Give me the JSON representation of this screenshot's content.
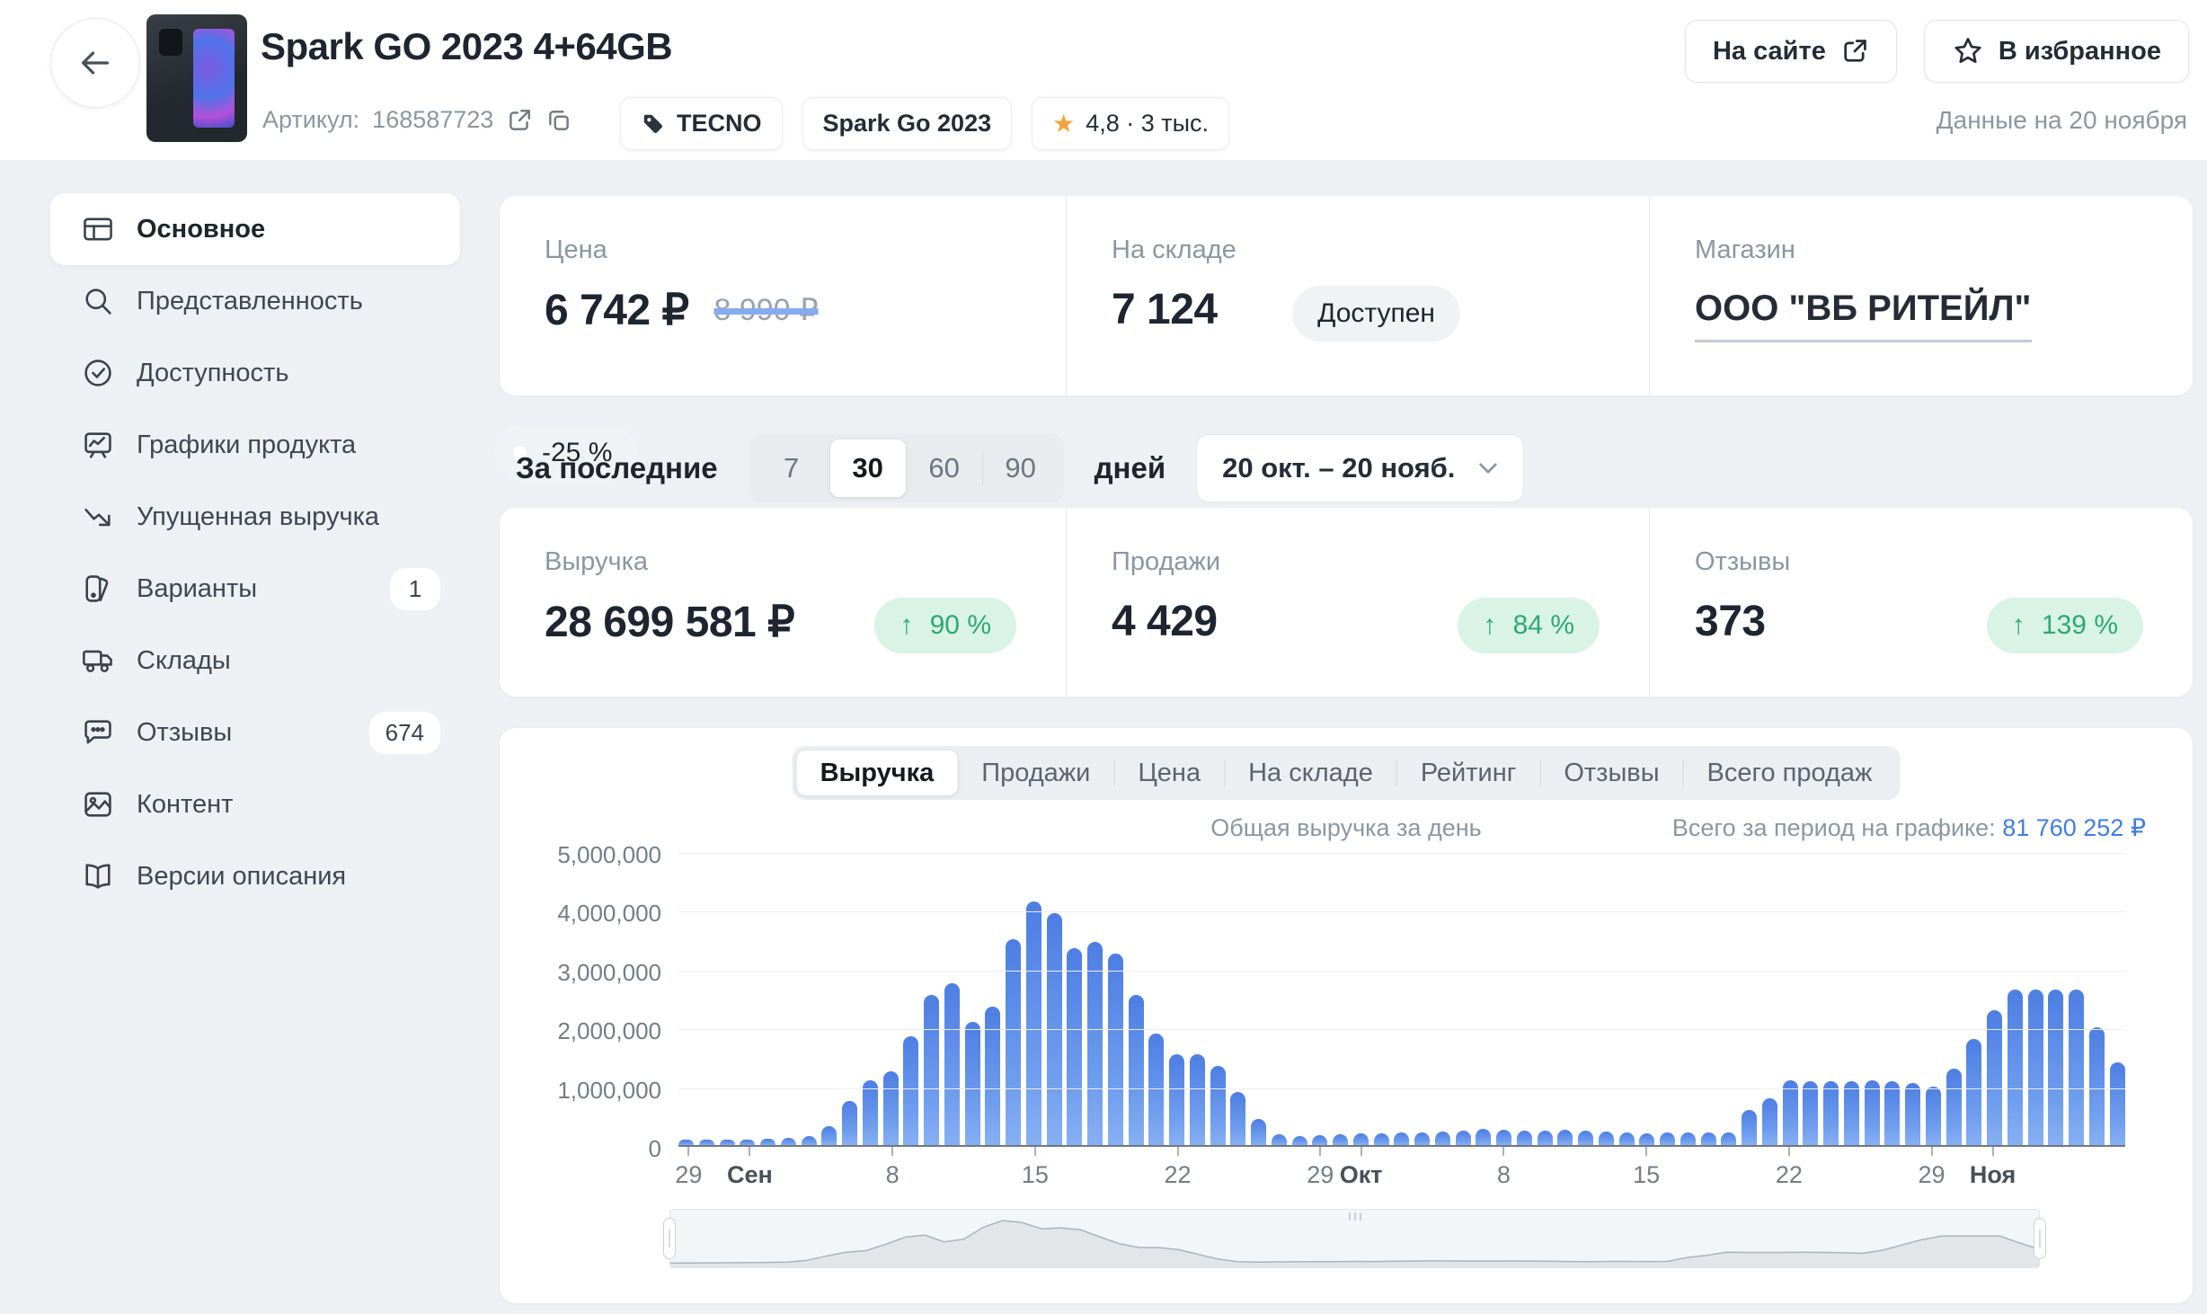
{
  "header": {
    "title": "Spark GO 2023 4+64GB",
    "article_label": "Артикул:",
    "article_number": "168587723",
    "brand_badge": "TECNO",
    "model_badge": "Spark Go 2023",
    "rating_badge": "4,8 · 3 тыс.",
    "site_button": "На сайте",
    "favorite_button": "В избранное",
    "data_date": "Данные на 20 ноября"
  },
  "sidebar": {
    "items": [
      {
        "label": "Основное",
        "icon": "grid-icon",
        "active": true
      },
      {
        "label": "Представленность",
        "icon": "search-icon"
      },
      {
        "label": "Доступность",
        "icon": "check-circle-icon"
      },
      {
        "label": "Графики продукта",
        "icon": "chart-board-icon"
      },
      {
        "label": "Упущенная выручка",
        "icon": "trend-down-icon"
      },
      {
        "label": "Варианты",
        "icon": "variants-icon",
        "badge": "1"
      },
      {
        "label": "Склады",
        "icon": "truck-icon"
      },
      {
        "label": "Отзывы",
        "icon": "chat-icon",
        "badge": "674"
      },
      {
        "label": "Контент",
        "icon": "image-icon"
      },
      {
        "label": "Версии описания",
        "icon": "book-icon"
      }
    ]
  },
  "info_cards": {
    "price": {
      "label": "Цена",
      "value": "6 742 ₽",
      "old_value": "8 990 ₽",
      "discount": "-25 %"
    },
    "stock": {
      "label": "На складе",
      "value": "7 124",
      "status": "Доступен"
    },
    "shop": {
      "label": "Магазин",
      "value": "ООО \"ВБ РИТЕЙЛ\""
    }
  },
  "period": {
    "prefix": "За последние",
    "options": [
      "7",
      "30",
      "60",
      "90"
    ],
    "selected": "30",
    "suffix": "дней",
    "range": "20 окт. – 20 нояб."
  },
  "metrics": [
    {
      "label": "Выручка",
      "value": "28 699 581 ₽",
      "change": "90 %"
    },
    {
      "label": "Продажи",
      "value": "4 429",
      "change": "84 %"
    },
    {
      "label": "Отзывы",
      "value": "373",
      "change": "139 %"
    }
  ],
  "chart": {
    "tabs": [
      "Выручка",
      "Продажи",
      "Цена",
      "На складе",
      "Рейтинг",
      "Отзывы",
      "Всего продаж"
    ],
    "active_tab": "Выручка",
    "subtitle": "Общая выручка за день",
    "total_label": "Всего за период на графике:",
    "total_value": "81 760 252 ₽"
  },
  "chart_data": {
    "type": "bar",
    "title": "Общая выручка за день",
    "ylabel": "",
    "xlabel": "",
    "ylim": [
      0,
      5000000
    ],
    "grid": true,
    "y_ticks": [
      "0",
      "1,000,000",
      "2,000,000",
      "3,000,000",
      "4,000,000",
      "5,000,000"
    ],
    "x_tick_labels": [
      {
        "label": "29",
        "index": 0
      },
      {
        "label": "Сен",
        "index": 3,
        "month": true
      },
      {
        "label": "8",
        "index": 10
      },
      {
        "label": "15",
        "index": 17
      },
      {
        "label": "22",
        "index": 24
      },
      {
        "label": "29",
        "index": 31
      },
      {
        "label": "Окт",
        "index": 33,
        "month": true
      },
      {
        "label": "8",
        "index": 40
      },
      {
        "label": "15",
        "index": 47
      },
      {
        "label": "22",
        "index": 54
      },
      {
        "label": "29",
        "index": 61
      },
      {
        "label": "Ноя",
        "index": 64,
        "month": true
      }
    ],
    "values": [
      60000,
      70000,
      80000,
      90000,
      100000,
      120000,
      150000,
      320000,
      750000,
      1100000,
      1250000,
      1850000,
      2550000,
      2750000,
      2100000,
      2350000,
      3500000,
      4150000,
      3950000,
      3350000,
      3450000,
      3250000,
      2550000,
      1900000,
      1550000,
      1550000,
      1350000,
      900000,
      450000,
      180000,
      150000,
      170000,
      180000,
      200000,
      200000,
      220000,
      210000,
      230000,
      250000,
      270000,
      260000,
      250000,
      250000,
      260000,
      250000,
      230000,
      210000,
      200000,
      220000,
      220000,
      210000,
      220000,
      600000,
      800000,
      1100000,
      1080000,
      1080000,
      1080000,
      1100000,
      1080000,
      1050000,
      1000000,
      1300000,
      1800000,
      2300000,
      2650000,
      2650000,
      2650000,
      2650000,
      2000000,
      1400000
    ],
    "period_total": 81760252
  },
  "colors": {
    "accent_blue": "#3f7de8",
    "bar_top": "#4d7ee3",
    "bar_bottom": "#87b0f3",
    "positive_green": "#2fa877",
    "positive_bg": "#d9f3e6",
    "star_orange": "#f2a33c"
  }
}
